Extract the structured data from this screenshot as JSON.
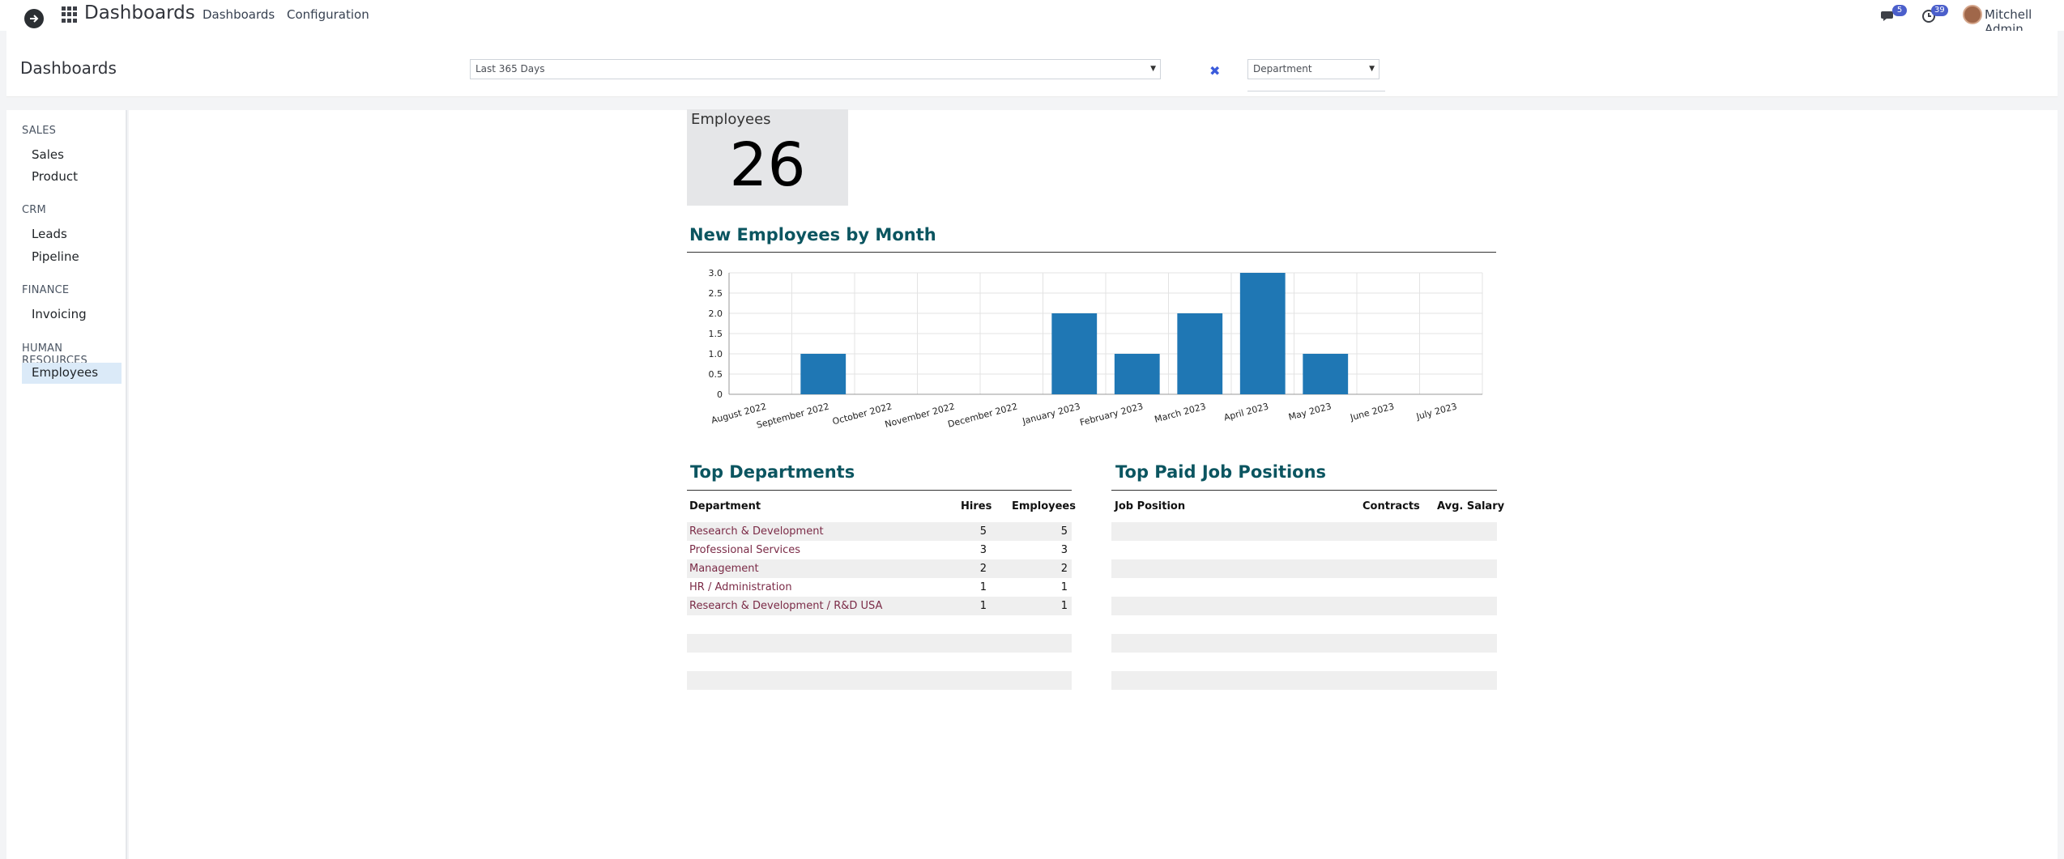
{
  "navbar": {
    "app_name": "Dashboards",
    "menus": [
      "Dashboards",
      "Configuration"
    ],
    "messages_badge": "5",
    "activities_badge": "39",
    "user_name": "Mitchell Admin"
  },
  "control": {
    "breadcrumb": "Dashboards",
    "period": "Last 365 Days",
    "department_placeholder": "Department"
  },
  "sidebar": {
    "sections": [
      {
        "title": "SALES",
        "items": [
          "Sales",
          "Product"
        ]
      },
      {
        "title": "CRM",
        "items": [
          "Leads",
          "Pipeline"
        ]
      },
      {
        "title": "FINANCE",
        "items": [
          "Invoicing"
        ]
      },
      {
        "title": "HUMAN RESOURCES",
        "items": [
          "Employees"
        ]
      }
    ],
    "active_item": "Employees"
  },
  "kpi": {
    "label": "Employees",
    "value": "26"
  },
  "chart_title": "New Employees by Month",
  "chart_data": {
    "type": "bar",
    "categories": [
      "August 2022",
      "September 2022",
      "October 2022",
      "November 2022",
      "December 2022",
      "January 2023",
      "February 2023",
      "March 2023",
      "April 2023",
      "May 2023",
      "June 2023",
      "July 2023"
    ],
    "values": [
      0,
      1,
      0,
      0,
      0,
      2,
      1,
      2,
      3,
      1,
      0,
      0
    ],
    "ylim": [
      0,
      3
    ],
    "yticks": [
      "0",
      "0.5",
      "1.0",
      "1.5",
      "2.0",
      "2.5",
      "3.0"
    ],
    "grid": true,
    "color": "#1f77b4"
  },
  "top_departments": {
    "title": "Top Departments",
    "headers": [
      "Department",
      "Hires",
      "Employees"
    ],
    "rows": [
      {
        "name": "Research & Development",
        "hires": "5",
        "employees": "5"
      },
      {
        "name": "Professional Services",
        "hires": "3",
        "employees": "3"
      },
      {
        "name": "Management",
        "hires": "2",
        "employees": "2"
      },
      {
        "name": "HR / Administration",
        "hires": "1",
        "employees": "1"
      },
      {
        "name": "Research & Development / R&D USA",
        "hires": "1",
        "employees": "1"
      }
    ]
  },
  "top_positions": {
    "title": "Top Paid Job Positions",
    "headers": [
      "Job Position",
      "Contracts",
      "Avg. Salary"
    ]
  },
  "colors": {
    "accent": "#0b5560",
    "link": "#7b2b47",
    "bar": "#1f77b4",
    "active": "#dbeaf8"
  }
}
